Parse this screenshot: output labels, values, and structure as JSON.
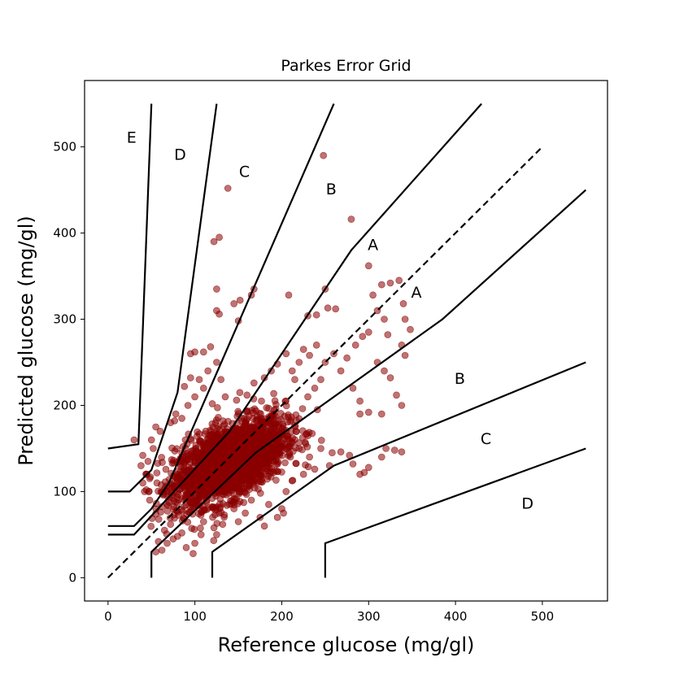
{
  "chart_data": {
    "type": "scatter",
    "title": "Parkes Error Grid",
    "xlabel": "Reference glucose (mg/gl)",
    "ylabel": "Predicted glucose (mg/gl)",
    "xlim": [
      -27,
      575
    ],
    "ylim": [
      -27,
      577
    ],
    "xticks": [
      "0",
      "100",
      "200",
      "300",
      "400",
      "500"
    ],
    "xtick_values": [
      0,
      100,
      200,
      300,
      400,
      500
    ],
    "yticks": [
      "0",
      "100",
      "200",
      "300",
      "400",
      "500"
    ],
    "ytick_values": [
      0,
      100,
      200,
      300,
      400,
      500
    ],
    "grid": false,
    "point_color": "#8b0000",
    "point_alpha": 0.55,
    "identity_line": [
      [
        0,
        0
      ],
      [
        500,
        500
      ]
    ],
    "zone_lines": [
      {
        "name": "A-upper",
        "points": [
          [
            0,
            50
          ],
          [
            30,
            50
          ],
          [
            140,
            170
          ],
          [
            280,
            380
          ],
          [
            430,
            550
          ]
        ]
      },
      {
        "name": "A-lower",
        "points": [
          [
            50,
            0
          ],
          [
            50,
            30
          ],
          [
            170,
            145
          ],
          [
            385,
            300
          ],
          [
            550,
            450
          ]
        ]
      },
      {
        "name": "B-upper",
        "points": [
          [
            0,
            60
          ],
          [
            30,
            60
          ],
          [
            50,
            80
          ],
          [
            70,
            110
          ],
          [
            260,
            550
          ]
        ]
      },
      {
        "name": "B-lower",
        "points": [
          [
            120,
            0
          ],
          [
            120,
            30
          ],
          [
            260,
            130
          ],
          [
            550,
            250
          ]
        ]
      },
      {
        "name": "C-upper",
        "points": [
          [
            0,
            100
          ],
          [
            25,
            100
          ],
          [
            50,
            125
          ],
          [
            80,
            215
          ],
          [
            125,
            550
          ]
        ]
      },
      {
        "name": "C-lower",
        "points": [
          [
            250,
            0
          ],
          [
            250,
            40
          ],
          [
            550,
            150
          ]
        ]
      },
      {
        "name": "D-upper",
        "points": [
          [
            0,
            150
          ],
          [
            35,
            155
          ],
          [
            50,
            550
          ]
        ]
      }
    ],
    "zone_labels": [
      {
        "text": "E",
        "x": 27,
        "y": 505
      },
      {
        "text": "D",
        "x": 83,
        "y": 485
      },
      {
        "text": "C",
        "x": 157,
        "y": 465
      },
      {
        "text": "B",
        "x": 257,
        "y": 445
      },
      {
        "text": "A",
        "x": 305,
        "y": 380
      },
      {
        "text": "A",
        "x": 355,
        "y": 325
      },
      {
        "text": "B",
        "x": 405,
        "y": 225
      },
      {
        "text": "C",
        "x": 435,
        "y": 155
      },
      {
        "text": "D",
        "x": 483,
        "y": 80
      }
    ],
    "outlier_points": [
      [
        248,
        490
      ],
      [
        138,
        452
      ],
      [
        280,
        416
      ],
      [
        122,
        390
      ],
      [
        128,
        395
      ],
      [
        300,
        362
      ],
      [
        168,
        335
      ],
      [
        165,
        328
      ],
      [
        125,
        335
      ],
      [
        152,
        322
      ],
      [
        145,
        318
      ],
      [
        125,
        310
      ],
      [
        128,
        306
      ],
      [
        150,
        298
      ],
      [
        208,
        328
      ],
      [
        250,
        335
      ],
      [
        253,
        313
      ],
      [
        262,
        312
      ],
      [
        240,
        305
      ],
      [
        230,
        304
      ],
      [
        315,
        340
      ],
      [
        325,
        342
      ],
      [
        335,
        345
      ],
      [
        340,
        318
      ],
      [
        342,
        300
      ],
      [
        348,
        288
      ],
      [
        338,
        270
      ],
      [
        342,
        258
      ],
      [
        305,
        328
      ],
      [
        310,
        310
      ],
      [
        318,
        300
      ],
      [
        322,
        282
      ],
      [
        300,
        285
      ],
      [
        293,
        280
      ],
      [
        310,
        250
      ],
      [
        318,
        240
      ],
      [
        325,
        232
      ],
      [
        332,
        212
      ],
      [
        338,
        200
      ],
      [
        315,
        190
      ],
      [
        300,
        192
      ],
      [
        290,
        190
      ],
      [
        290,
        205
      ],
      [
        282,
        220
      ],
      [
        285,
        270
      ],
      [
        275,
        255
      ],
      [
        268,
        240
      ],
      [
        260,
        260
      ],
      [
        250,
        250
      ],
      [
        245,
        230
      ],
      [
        238,
        220
      ],
      [
        230,
        210
      ],
      [
        330,
        148
      ],
      [
        338,
        146
      ],
      [
        320,
        150
      ],
      [
        315,
        140
      ],
      [
        300,
        128
      ],
      [
        295,
        122
      ],
      [
        290,
        120
      ],
      [
        282,
        132
      ],
      [
        278,
        142
      ],
      [
        268,
        146
      ],
      [
        258,
        145
      ],
      [
        255,
        130
      ],
      [
        245,
        150
      ],
      [
        238,
        126
      ],
      [
        232,
        140
      ],
      [
        225,
        120
      ],
      [
        220,
        150
      ],
      [
        210,
        140
      ],
      [
        205,
        100
      ],
      [
        202,
        75
      ],
      [
        200,
        80
      ],
      [
        195,
        70
      ],
      [
        185,
        85
      ],
      [
        180,
        60
      ],
      [
        175,
        70
      ],
      [
        165,
        90
      ],
      [
        158,
        75
      ],
      [
        150,
        65
      ],
      [
        145,
        80
      ],
      [
        132,
        62
      ],
      [
        125,
        50
      ],
      [
        122,
        58
      ],
      [
        110,
        65
      ],
      [
        100,
        40
      ],
      [
        98,
        28
      ],
      [
        90,
        35
      ],
      [
        85,
        52
      ],
      [
        80,
        48
      ],
      [
        75,
        45
      ],
      [
        68,
        40
      ],
      [
        62,
        32
      ],
      [
        55,
        30
      ],
      [
        58,
        42
      ],
      [
        65,
        55
      ],
      [
        72,
        62
      ],
      [
        95,
        260
      ],
      [
        100,
        262
      ],
      [
        110,
        262
      ],
      [
        118,
        268
      ],
      [
        125,
        250
      ],
      [
        130,
        230
      ],
      [
        115,
        240
      ],
      [
        105,
        230
      ],
      [
        95,
        232
      ],
      [
        88,
        222
      ],
      [
        92,
        200
      ],
      [
        100,
        210
      ],
      [
        110,
        220
      ],
      [
        120,
        202
      ],
      [
        135,
        210
      ],
      [
        148,
        206
      ],
      [
        160,
        212
      ],
      [
        168,
        226
      ],
      [
        180,
        232
      ],
      [
        188,
        240
      ],
      [
        195,
        248
      ],
      [
        205,
        260
      ],
      [
        212,
        240
      ],
      [
        220,
        250
      ],
      [
        215,
        230
      ],
      [
        225,
        265
      ],
      [
        232,
        258
      ],
      [
        240,
        270
      ],
      [
        45,
        120
      ],
      [
        42,
        100
      ],
      [
        48,
        90
      ],
      [
        40,
        110
      ],
      [
        46,
        135
      ],
      [
        52,
        150
      ],
      [
        55,
        175
      ],
      [
        60,
        170
      ],
      [
        62,
        100
      ],
      [
        68,
        85
      ],
      [
        72,
        180
      ],
      [
        78,
        190
      ],
      [
        85,
        185
      ],
      [
        38,
        130
      ],
      [
        50,
        160
      ],
      [
        30,
        160
      ],
      [
        40,
        142
      ],
      [
        44,
        120
      ],
      [
        48,
        115
      ]
    ],
    "cluster": {
      "center": [
        140,
        135
      ],
      "spread": [
        32,
        25
      ],
      "count": 2400,
      "correlation": 0.55
    }
  }
}
